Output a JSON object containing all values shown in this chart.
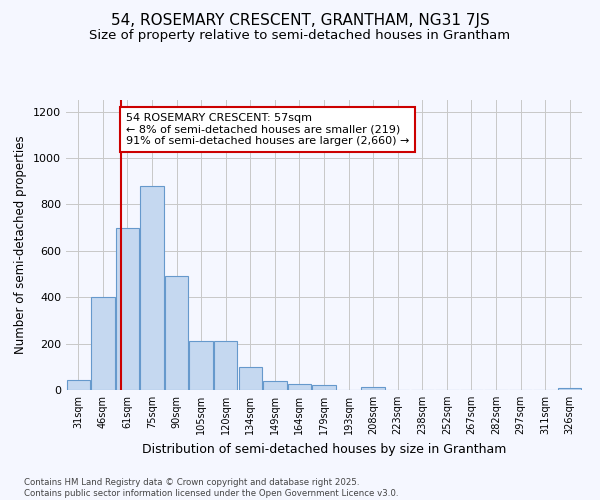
{
  "title": "54, ROSEMARY CRESCENT, GRANTHAM, NG31 7JS",
  "subtitle": "Size of property relative to semi-detached houses in Grantham",
  "xlabel": "Distribution of semi-detached houses by size in Grantham",
  "ylabel": "Number of semi-detached properties",
  "footer_line1": "Contains HM Land Registry data © Crown copyright and database right 2025.",
  "footer_line2": "Contains public sector information licensed under the Open Government Licence v3.0.",
  "annotation_title": "54 ROSEMARY CRESCENT: 57sqm",
  "annotation_line1": "← 8% of semi-detached houses are smaller (219)",
  "annotation_line2": "91% of semi-detached houses are larger (2,660) →",
  "bar_categories": [
    "31sqm",
    "46sqm",
    "61sqm",
    "75sqm",
    "90sqm",
    "105sqm",
    "120sqm",
    "134sqm",
    "149sqm",
    "164sqm",
    "179sqm",
    "193sqm",
    "208sqm",
    "223sqm",
    "238sqm",
    "252sqm",
    "267sqm",
    "282sqm",
    "297sqm",
    "311sqm",
    "326sqm"
  ],
  "bar_values": [
    45,
    400,
    700,
    880,
    490,
    210,
    210,
    97,
    40,
    27,
    20,
    0,
    15,
    0,
    0,
    0,
    0,
    0,
    0,
    0,
    10
  ],
  "bar_color": "#c5d8f0",
  "bar_edge_color": "#6699cc",
  "vline_color": "#cc0000",
  "annotation_box_color": "#cc0000",
  "grid_color": "#c8c8c8",
  "ylim": [
    0,
    1250
  ],
  "yticks": [
    0,
    200,
    400,
    600,
    800,
    1000,
    1200
  ],
  "bg_color": "#f5f7ff",
  "title_fontsize": 11,
  "subtitle_fontsize": 9.5,
  "vline_x": 1.73
}
